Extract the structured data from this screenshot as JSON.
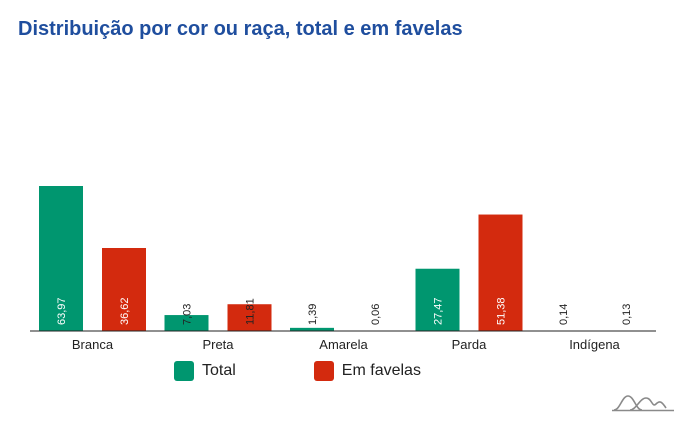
{
  "title": "Distribuição por cor ou raça, total e em favelas",
  "colors": {
    "total": "#00966f",
    "favelas": "#d32a0e",
    "title": "#1f4e9e"
  },
  "legend": {
    "total": "Total",
    "favelas": "Em favelas"
  },
  "logo_icon": "mountain-logo-icon",
  "chart_data": {
    "type": "bar",
    "title": "Distribuição por cor ou raça, total e em favelas",
    "categories": [
      "Branca",
      "Preta",
      "Amarela",
      "Parda",
      "Indígena"
    ],
    "series": [
      {
        "name": "Total",
        "values": [
          63.97,
          7.03,
          1.39,
          27.47,
          0.14
        ],
        "labels": [
          "63,97",
          "7,03",
          "1,39",
          "27,47",
          "0,14"
        ]
      },
      {
        "name": "Em favelas",
        "values": [
          36.62,
          11.81,
          0.06,
          51.38,
          0.13
        ],
        "labels": [
          "36,62",
          "11,81",
          "0,06",
          "51,38",
          "0,13"
        ]
      }
    ],
    "xlabel": "",
    "ylabel": "",
    "ylim": [
      0,
      70
    ],
    "grid": false,
    "legend": "bottom"
  }
}
